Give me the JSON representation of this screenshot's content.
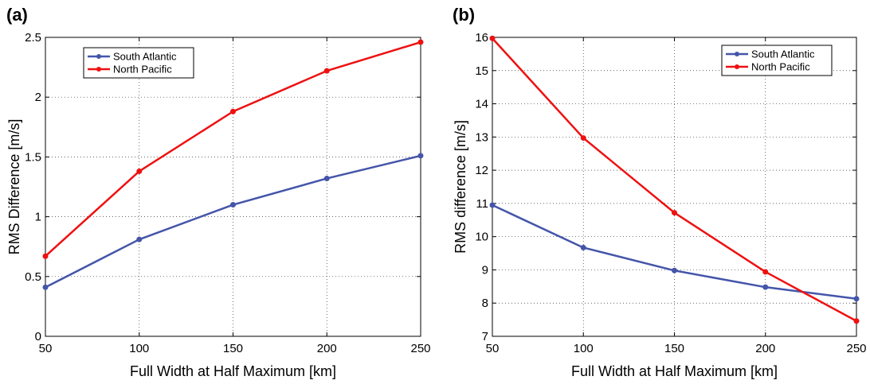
{
  "chart_data": [
    {
      "panel_label": "(a)",
      "type": "line",
      "xlabel": "Full Width at Half Maximum [km]",
      "ylabel": "RMS Difference [m/s]",
      "x": [
        50,
        100,
        150,
        200,
        250
      ],
      "xlim": [
        50,
        250
      ],
      "ylim": [
        0,
        2.5
      ],
      "xticks": [
        50,
        100,
        150,
        200,
        250
      ],
      "yticks": [
        0,
        0.5,
        1,
        1.5,
        2,
        2.5
      ],
      "ytick_labels": [
        "0",
        "0.5",
        "1",
        "1.5",
        "2",
        "2.5"
      ],
      "grid": true,
      "legend_position": "top-left",
      "series": [
        {
          "name": "South Atlantic",
          "color": "#4455aa",
          "values": [
            0.41,
            0.81,
            1.1,
            1.32,
            1.51
          ]
        },
        {
          "name": "North Pacific",
          "color": "#ee1111",
          "values": [
            0.67,
            1.38,
            1.88,
            2.22,
            2.46
          ]
        }
      ]
    },
    {
      "panel_label": "(b)",
      "type": "line",
      "xlabel": "Full Width at Half Maximum [km]",
      "ylabel": "RMS difference [m/s]",
      "x": [
        50,
        100,
        150,
        200,
        250
      ],
      "xlim": [
        50,
        250
      ],
      "ylim": [
        7,
        16
      ],
      "xticks": [
        50,
        100,
        150,
        200,
        250
      ],
      "yticks": [
        7,
        8,
        9,
        10,
        11,
        12,
        13,
        14,
        15,
        16
      ],
      "ytick_labels": [
        "7",
        "8",
        "9",
        "10",
        "11",
        "12",
        "13",
        "14",
        "15",
        "16"
      ],
      "grid": true,
      "legend_position": "top-right",
      "series": [
        {
          "name": "South Atlantic",
          "color": "#4455aa",
          "values": [
            10.95,
            9.67,
            8.98,
            8.48,
            8.13
          ]
        },
        {
          "name": "North Pacific",
          "color": "#ee1111",
          "values": [
            15.97,
            12.97,
            10.72,
            8.94,
            7.46
          ]
        }
      ]
    }
  ]
}
